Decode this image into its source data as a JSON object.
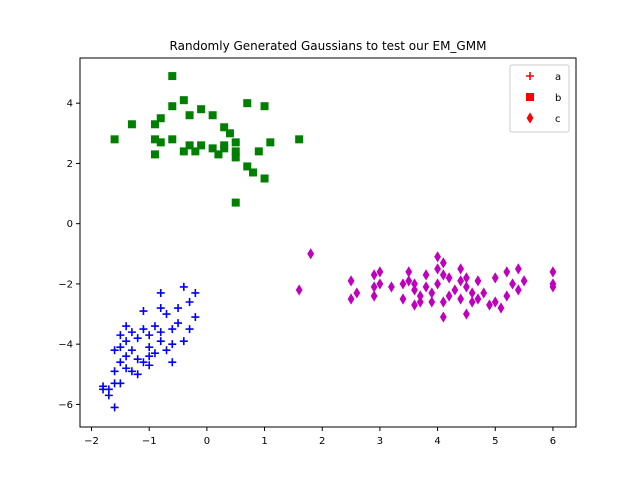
{
  "chart_data": {
    "type": "scatter",
    "title": "Randomly Generated Gaussians to test our EM_GMM",
    "xlabel": "",
    "ylabel": "",
    "xlim": [
      -2.2,
      6.4
    ],
    "ylim": [
      -6.75,
      5.5
    ],
    "xticks": [
      -2,
      -1,
      0,
      1,
      2,
      3,
      4,
      5,
      6
    ],
    "yticks": [
      -6,
      -4,
      -2,
      0,
      2,
      4
    ],
    "grid": false,
    "legend_position": "top-right",
    "series": [
      {
        "name": "a",
        "marker": "plus",
        "color": "#0000ff",
        "points": [
          [
            -0.4,
            -2.1
          ],
          [
            -0.8,
            -2.3
          ],
          [
            -0.2,
            -2.3
          ],
          [
            -0.3,
            -2.6
          ],
          [
            -0.5,
            -2.8
          ],
          [
            -0.8,
            -2.8
          ],
          [
            -1.1,
            -2.9
          ],
          [
            -0.7,
            -3.0
          ],
          [
            -0.2,
            -3.1
          ],
          [
            -0.5,
            -3.3
          ],
          [
            -0.9,
            -3.4
          ],
          [
            -1.4,
            -3.4
          ],
          [
            -1.1,
            -3.5
          ],
          [
            -0.6,
            -3.5
          ],
          [
            -0.3,
            -3.5
          ],
          [
            -1.3,
            -3.6
          ],
          [
            -0.8,
            -3.6
          ],
          [
            -1.0,
            -3.7
          ],
          [
            -1.5,
            -3.7
          ],
          [
            -1.2,
            -3.8
          ],
          [
            -0.4,
            -3.9
          ],
          [
            -0.8,
            -3.9
          ],
          [
            -1.4,
            -3.9
          ],
          [
            -0.6,
            -4.0
          ],
          [
            -1.5,
            -4.1
          ],
          [
            -1.0,
            -4.1
          ],
          [
            -0.7,
            -4.2
          ],
          [
            -1.6,
            -4.2
          ],
          [
            -1.3,
            -4.2
          ],
          [
            -0.9,
            -4.3
          ],
          [
            -1.4,
            -4.4
          ],
          [
            -1.0,
            -4.4
          ],
          [
            -1.2,
            -4.5
          ],
          [
            -0.6,
            -4.6
          ],
          [
            -1.5,
            -4.6
          ],
          [
            -1.1,
            -4.6
          ],
          [
            -1.0,
            -4.7
          ],
          [
            -1.4,
            -4.8
          ],
          [
            -1.3,
            -4.9
          ],
          [
            -1.6,
            -4.9
          ],
          [
            -1.2,
            -5.0
          ],
          [
            -1.5,
            -5.3
          ],
          [
            -1.6,
            -5.3
          ],
          [
            -1.8,
            -5.4
          ],
          [
            -1.7,
            -5.5
          ],
          [
            -1.8,
            -5.5
          ],
          [
            -1.7,
            -5.7
          ],
          [
            -1.6,
            -6.1
          ]
        ]
      },
      {
        "name": "b",
        "marker": "square",
        "color": "#007f00",
        "points": [
          [
            -0.6,
            4.9
          ],
          [
            -0.4,
            4.1
          ],
          [
            0.7,
            4.0
          ],
          [
            1.0,
            3.9
          ],
          [
            -0.6,
            3.9
          ],
          [
            -0.1,
            3.8
          ],
          [
            -0.3,
            3.6
          ],
          [
            0.1,
            3.6
          ],
          [
            -0.8,
            3.5
          ],
          [
            -1.3,
            3.3
          ],
          [
            -0.9,
            3.3
          ],
          [
            0.3,
            3.2
          ],
          [
            0.4,
            3.0
          ],
          [
            -0.6,
            2.8
          ],
          [
            -1.6,
            2.8
          ],
          [
            -0.9,
            2.8
          ],
          [
            1.1,
            2.7
          ],
          [
            -0.8,
            2.7
          ],
          [
            0.5,
            2.7
          ],
          [
            -0.3,
            2.6
          ],
          [
            -0.1,
            2.6
          ],
          [
            0.1,
            2.5
          ],
          [
            0.3,
            2.5
          ],
          [
            0.9,
            2.4
          ],
          [
            -0.4,
            2.4
          ],
          [
            0.5,
            2.4
          ],
          [
            -0.2,
            2.4
          ],
          [
            0.2,
            2.3
          ],
          [
            -0.9,
            2.3
          ],
          [
            0.5,
            2.2
          ],
          [
            0.7,
            1.9
          ],
          [
            0.8,
            1.7
          ],
          [
            1.0,
            1.5
          ],
          [
            0.5,
            0.7
          ],
          [
            1.6,
            2.8
          ],
          [
            0.3,
            2.6
          ]
        ]
      },
      {
        "name": "c",
        "marker": "thin_diamond",
        "color": "#bf00bf",
        "points": [
          [
            1.8,
            -1.0
          ],
          [
            1.6,
            -2.2
          ],
          [
            2.5,
            -1.9
          ],
          [
            2.6,
            -2.3
          ],
          [
            2.5,
            -2.5
          ],
          [
            2.9,
            -1.7
          ],
          [
            2.9,
            -2.1
          ],
          [
            2.9,
            -2.4
          ],
          [
            3.0,
            -1.6
          ],
          [
            3.0,
            -2.0
          ],
          [
            3.2,
            -2.1
          ],
          [
            3.4,
            -2.0
          ],
          [
            3.4,
            -2.5
          ],
          [
            3.5,
            -1.6
          ],
          [
            3.5,
            -1.9
          ],
          [
            3.6,
            -2.2
          ],
          [
            3.6,
            -2.7
          ],
          [
            3.6,
            -2.0
          ],
          [
            3.7,
            -2.4
          ],
          [
            3.7,
            -2.6
          ],
          [
            3.8,
            -1.7
          ],
          [
            3.8,
            -2.1
          ],
          [
            3.9,
            -2.3
          ],
          [
            4.0,
            -1.1
          ],
          [
            4.0,
            -1.5
          ],
          [
            4.0,
            -2.0
          ],
          [
            4.1,
            -1.3
          ],
          [
            4.1,
            -1.7
          ],
          [
            4.1,
            -2.6
          ],
          [
            4.1,
            -3.1
          ],
          [
            4.2,
            -1.8
          ],
          [
            4.2,
            -2.4
          ],
          [
            4.3,
            -2.2
          ],
          [
            4.4,
            -1.5
          ],
          [
            4.4,
            -1.9
          ],
          [
            4.4,
            -2.5
          ],
          [
            4.5,
            -2.1
          ],
          [
            4.5,
            -3.0
          ],
          [
            4.5,
            -1.8
          ],
          [
            4.6,
            -2.6
          ],
          [
            4.6,
            -2.3
          ],
          [
            4.7,
            -1.9
          ],
          [
            4.7,
            -2.5
          ],
          [
            4.8,
            -2.3
          ],
          [
            4.9,
            -2.7
          ],
          [
            5.0,
            -1.8
          ],
          [
            5.0,
            -2.6
          ],
          [
            5.2,
            -2.4
          ],
          [
            5.2,
            -1.6
          ],
          [
            5.3,
            -2.0
          ],
          [
            5.4,
            -1.5
          ],
          [
            5.4,
            -2.2
          ],
          [
            5.5,
            -1.9
          ],
          [
            6.0,
            -1.6
          ],
          [
            6.0,
            -2.1
          ],
          [
            6.0,
            -2.0
          ],
          [
            5.1,
            -2.8
          ],
          [
            3.9,
            -2.6
          ]
        ]
      }
    ]
  }
}
